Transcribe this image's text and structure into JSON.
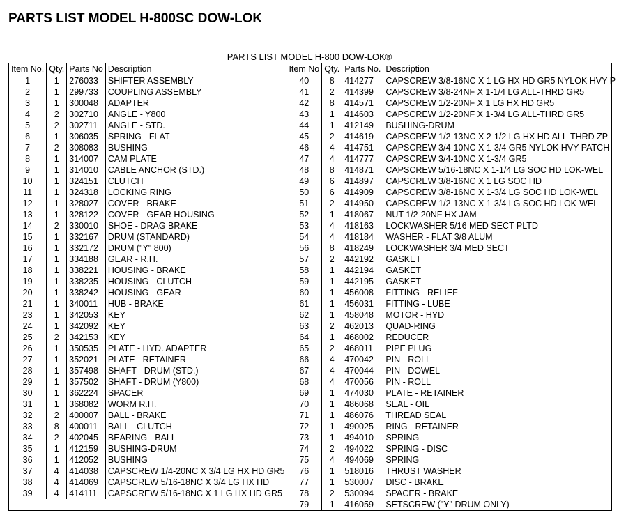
{
  "title": "PARTS LIST MODEL  H-800SC DOW-LOK",
  "subtitle": "PARTS LIST MODEL H-800 DOW-LOK®",
  "headers_left": {
    "item": "Item No.",
    "qty": "Qty.",
    "parts": "Parts No",
    "desc": "Description"
  },
  "headers_right": {
    "item": "Item No",
    "qty": "Qty.",
    "parts": "Parts No.",
    "desc": "Description"
  },
  "left": [
    {
      "item": "1",
      "qty": "1",
      "parts": "276033",
      "desc": "SHIFTER ASSEMBLY"
    },
    {
      "item": "2",
      "qty": "1",
      "parts": "299733",
      "desc": "COUPLING ASSEMBLY"
    },
    {
      "item": "3",
      "qty": "1",
      "parts": "300048",
      "desc": "ADAPTER"
    },
    {
      "item": "4",
      "qty": "2",
      "parts": "302710",
      "desc": "ANGLE - Y800"
    },
    {
      "item": "5",
      "qty": "2",
      "parts": "302711",
      "desc": "ANGLE - STD."
    },
    {
      "item": "6",
      "qty": "1",
      "parts": "306035",
      "desc": "SPRING - FLAT"
    },
    {
      "item": "7",
      "qty": "2",
      "parts": "308083",
      "desc": "BUSHING"
    },
    {
      "item": "8",
      "qty": "1",
      "parts": "314007",
      "desc": "CAM PLATE"
    },
    {
      "item": "9",
      "qty": "1",
      "parts": "314010",
      "desc": "CABLE ANCHOR (STD.)"
    },
    {
      "item": "10",
      "qty": "1",
      "parts": "324151",
      "desc": "CLUTCH"
    },
    {
      "item": "11",
      "qty": "1",
      "parts": "324318",
      "desc": "LOCKING RING"
    },
    {
      "item": "12",
      "qty": "1",
      "parts": "328027",
      "desc": "COVER - BRAKE"
    },
    {
      "item": "13",
      "qty": "1",
      "parts": "328122",
      "desc": "COVER - GEAR HOUSING"
    },
    {
      "item": "14",
      "qty": "2",
      "parts": "330010",
      "desc": "SHOE - DRAG BRAKE"
    },
    {
      "item": "15",
      "qty": "1",
      "parts": "332167",
      "desc": "DRUM (STANDARD)"
    },
    {
      "item": "16",
      "qty": "1",
      "parts": "332172",
      "desc": "DRUM (\"Y\" 800)"
    },
    {
      "item": "17",
      "qty": "1",
      "parts": "334188",
      "desc": "GEAR - R.H."
    },
    {
      "item": "18",
      "qty": "1",
      "parts": "338221",
      "desc": "HOUSING - BRAKE"
    },
    {
      "item": "19",
      "qty": "1",
      "parts": "338235",
      "desc": "HOUSING - CLUTCH"
    },
    {
      "item": "20",
      "qty": "1",
      "parts": "338242",
      "desc": "HOUSING - GEAR"
    },
    {
      "item": "21",
      "qty": "1",
      "parts": "340011",
      "desc": "HUB - BRAKE"
    },
    {
      "item": "",
      "qty": "",
      "parts": "",
      "desc": ""
    },
    {
      "item": "23",
      "qty": "1",
      "parts": "342053",
      "desc": "KEY"
    },
    {
      "item": "24",
      "qty": "1",
      "parts": "342092",
      "desc": "KEY"
    },
    {
      "item": "25",
      "qty": "2",
      "parts": "342153",
      "desc": "KEY"
    },
    {
      "item": "26",
      "qty": "1",
      "parts": "350535",
      "desc": "PLATE - HYD. ADAPTER"
    },
    {
      "item": "27",
      "qty": "1",
      "parts": "352021",
      "desc": "PLATE - RETAINER"
    },
    {
      "item": "28",
      "qty": "1",
      "parts": "357498",
      "desc": "SHAFT - DRUM (STD.)"
    },
    {
      "item": "29",
      "qty": "1",
      "parts": "357502",
      "desc": "SHAFT - DRUM (Y800)"
    },
    {
      "item": "30",
      "qty": "1",
      "parts": "362224",
      "desc": "SPACER"
    },
    {
      "item": "31",
      "qty": "1",
      "parts": "368082",
      "desc": "WORM R.H."
    },
    {
      "item": "32",
      "qty": "2",
      "parts": "400007",
      "desc": "BALL - BRAKE"
    },
    {
      "item": "33",
      "qty": "8",
      "parts": "400011",
      "desc": "BALL - CLUTCH"
    },
    {
      "item": "34",
      "qty": "2",
      "parts": "402045",
      "desc": "BEARING - BALL"
    },
    {
      "item": "35",
      "qty": "1",
      "parts": "412159",
      "desc": "BUSHING-DRUM"
    },
    {
      "item": "36",
      "qty": "1",
      "parts": "412052",
      "desc": "BUSHING"
    },
    {
      "item": "37",
      "qty": "4",
      "parts": "414038",
      "desc": "CAPSCREW 1/4-20NC X 3/4 LG HX HD GR5"
    },
    {
      "item": "38",
      "qty": "4",
      "parts": "414069",
      "desc": "CAPSCREW 5/16-18NC X 3/4 LG HX HD"
    },
    {
      "item": "39",
      "qty": "4",
      "parts": "414111",
      "desc": "CAPSCREW 5/16-18NC X 1 LG HX HD GR5"
    }
  ],
  "right": [
    {
      "item": "40",
      "qty": "8",
      "parts": "414277",
      "desc": "CAPSCREW 3/8-16NC X 1 LG HX HD GR5 NYLOK HVY P"
    },
    {
      "item": "41",
      "qty": "2",
      "parts": "414399",
      "desc": "CAPSCREW 3/8-24NF X 1-1/4 LG ALL-THRD GR5"
    },
    {
      "item": "42",
      "qty": "8",
      "parts": "414571",
      "desc": "CAPSCREW 1/2-20NF X 1 LG HX HD GR5"
    },
    {
      "item": "43",
      "qty": "1",
      "parts": "414603",
      "desc": "CAPSCREW 1/2-20NF X 1-3/4 LG ALL-THRD GR5"
    },
    {
      "item": "44",
      "qty": "1",
      "parts": "412149",
      "desc": "BUSHING-DRUM"
    },
    {
      "item": "45",
      "qty": "2",
      "parts": "414619",
      "desc": "CAPSCREW 1/2-13NC X 2-1/2 LG HX HD ALL-THRD ZP"
    },
    {
      "item": "46",
      "qty": "4",
      "parts": "414751",
      "desc": "CAPSCREW 3/4-10NC X 1-3/4 GR5 NYLOK HVY PATCH"
    },
    {
      "item": "47",
      "qty": "4",
      "parts": "414777",
      "desc": "CAPSCREW 3/4-10NC X 1-3/4 GR5"
    },
    {
      "item": "48",
      "qty": "8",
      "parts": "414871",
      "desc": "CAPSCREW 5/16-18NC X 1-1/4 LG SOC HD LOK-WEL"
    },
    {
      "item": "49",
      "qty": "6",
      "parts": "414897",
      "desc": "CAPSCREW 3/8-16NC X 1 LG SOC HD"
    },
    {
      "item": "50",
      "qty": "6",
      "parts": "414909",
      "desc": "CAPSCREW 3/8-16NC X 1-3/4 LG SOC HD LOK-WEL"
    },
    {
      "item": "51",
      "qty": "2",
      "parts": "414950",
      "desc": "CAPSCREW 1/2-13NC X 1-3/4 LG SOC HD LOK-WEL"
    },
    {
      "item": "52",
      "qty": "1",
      "parts": "418067",
      "desc": "NUT 1/2-20NF HX JAM"
    },
    {
      "item": "53",
      "qty": "4",
      "parts": "418163",
      "desc": "LOCKWASHER 5/16 MED SECT PLTD"
    },
    {
      "item": "54",
      "qty": "4",
      "parts": "418184",
      "desc": "WASHER - FLAT 3/8 ALUM"
    },
    {
      "item": "56",
      "qty": "8",
      "parts": "418249",
      "desc": "LOCKWASHER 3/4 MED SECT"
    },
    {
      "item": "57",
      "qty": "2",
      "parts": "442192",
      "desc": "GASKET"
    },
    {
      "item": "58",
      "qty": "1",
      "parts": "442194",
      "desc": "GASKET"
    },
    {
      "item": "59",
      "qty": "1",
      "parts": "442195",
      "desc": "GASKET"
    },
    {
      "item": "60",
      "qty": "1",
      "parts": "456008",
      "desc": "FITTING - RELIEF"
    },
    {
      "item": "61",
      "qty": "1",
      "parts": "456031",
      "desc": "FITTING - LUBE"
    },
    {
      "item": "62",
      "qty": "1",
      "parts": "458048",
      "desc": "MOTOR - HYD"
    },
    {
      "item": "63",
      "qty": "2",
      "parts": "462013",
      "desc": "QUAD-RING"
    },
    {
      "item": "64",
      "qty": "1",
      "parts": "468002",
      "desc": "REDUCER"
    },
    {
      "item": "65",
      "qty": "2",
      "parts": "468011",
      "desc": "PIPE PLUG"
    },
    {
      "item": "66",
      "qty": "4",
      "parts": "470042",
      "desc": "PIN - ROLL"
    },
    {
      "item": "67",
      "qty": "4",
      "parts": "470044",
      "desc": "PIN - DOWEL"
    },
    {
      "item": "68",
      "qty": "4",
      "parts": "470056",
      "desc": "PIN - ROLL"
    },
    {
      "item": "69",
      "qty": "1",
      "parts": "474030",
      "desc": "PLATE - RETAINER"
    },
    {
      "item": "70",
      "qty": "1",
      "parts": "486068",
      "desc": "SEAL - OIL"
    },
    {
      "item": "71",
      "qty": "1",
      "parts": "486076",
      "desc": "THREAD SEAL"
    },
    {
      "item": "72",
      "qty": "1",
      "parts": "490025",
      "desc": "RING - RETAINER"
    },
    {
      "item": "73",
      "qty": "1",
      "parts": "494010",
      "desc": "SPRING"
    },
    {
      "item": "74",
      "qty": "2",
      "parts": "494022",
      "desc": "SPRING - DISC"
    },
    {
      "item": "75",
      "qty": "4",
      "parts": "494069",
      "desc": "SPRING"
    },
    {
      "item": "76",
      "qty": "1",
      "parts": "518016",
      "desc": "THRUST WASHER"
    },
    {
      "item": "77",
      "qty": "1",
      "parts": "530007",
      "desc": "DISC - BRAKE"
    },
    {
      "item": "78",
      "qty": "2",
      "parts": "530094",
      "desc": "SPACER - BRAKE"
    },
    {
      "item": "79",
      "qty": "1",
      "parts": "416059",
      "desc": "SETSCREW (\"Y\" DRUM ONLY)"
    }
  ]
}
